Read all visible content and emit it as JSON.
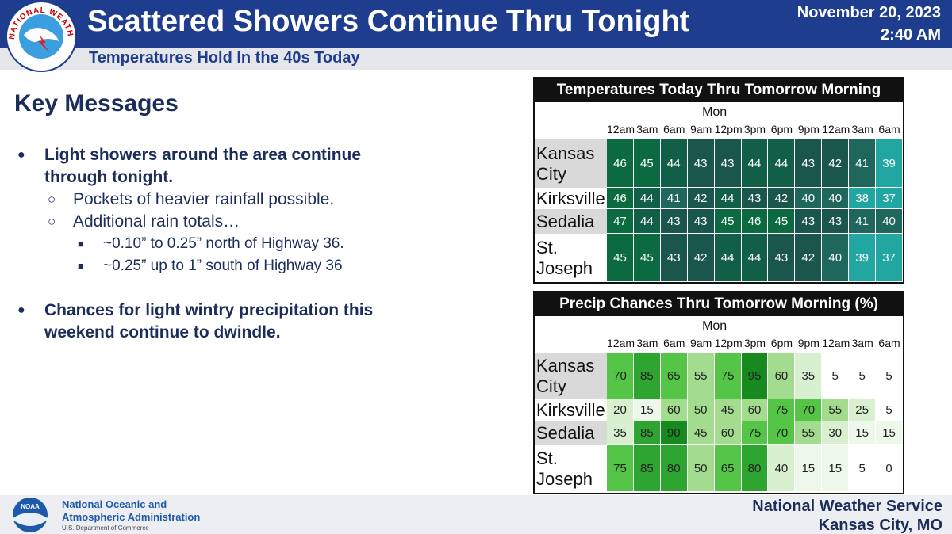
{
  "header": {
    "title": "Scattered Showers Continue Thru Tonight",
    "subtitle": "Temperatures Hold In the 40s Today",
    "date": "November 20, 2023",
    "time": "2:40 AM",
    "logo_text": "NATIONAL WEATHER SERVICE"
  },
  "key_messages": {
    "heading": "Key Messages",
    "bullets": [
      {
        "text": "Light showers around the area continue through tonight.",
        "subs": [
          {
            "text": "Pockets of heavier rainfall possible.",
            "subs": []
          },
          {
            "text": "Additional rain totals…",
            "subs": [
              "~0.10” to 0.25” north of Highway 36.",
              "~0.25” up to 1” south of Highway 36"
            ]
          }
        ]
      },
      {
        "text": "Chances for light wintry precipitation this weekend continue to dwindle.",
        "subs": []
      }
    ]
  },
  "temperature_table": {
    "title": "Temperatures Today Thru Tomorrow Morning",
    "day": "Mon",
    "times": [
      "12am",
      "3am",
      "6am",
      "9am",
      "12pm",
      "3pm",
      "6pm",
      "9pm",
      "12am",
      "3am",
      "6am"
    ],
    "rows": [
      {
        "station": "Kansas City",
        "values": [
          46,
          45,
          44,
          43,
          43,
          44,
          44,
          43,
          42,
          41,
          39
        ]
      },
      {
        "station": "Kirksville",
        "values": [
          46,
          44,
          41,
          42,
          44,
          43,
          42,
          40,
          40,
          38,
          37
        ]
      },
      {
        "station": "Sedalia",
        "values": [
          47,
          44,
          43,
          43,
          45,
          46,
          45,
          43,
          43,
          41,
          40
        ]
      },
      {
        "station": "St. Joseph",
        "values": [
          45,
          45,
          43,
          42,
          44,
          44,
          43,
          42,
          40,
          39,
          37
        ]
      }
    ]
  },
  "precip_table": {
    "title": "Precip Chances Thru Tomorrow Morning (%)",
    "day": "Mon",
    "times": [
      "12am",
      "3am",
      "6am",
      "9am",
      "12pm",
      "3pm",
      "6pm",
      "9pm",
      "12am",
      "3am",
      "6am"
    ],
    "rows": [
      {
        "station": "Kansas City",
        "values": [
          70,
          85,
          65,
          55,
          75,
          95,
          60,
          35,
          5,
          5,
          5
        ]
      },
      {
        "station": "Kirksville",
        "values": [
          20,
          15,
          60,
          50,
          45,
          60,
          75,
          70,
          55,
          25,
          5
        ]
      },
      {
        "station": "Sedalia",
        "values": [
          35,
          85,
          90,
          45,
          60,
          75,
          70,
          55,
          30,
          15,
          15
        ]
      },
      {
        "station": "St. Joseph",
        "values": [
          75,
          85,
          80,
          50,
          65,
          80,
          40,
          15,
          15,
          5,
          0
        ]
      }
    ]
  },
  "footer": {
    "noaa_logo": "NOAA",
    "noaa_line1": "National Oceanic and",
    "noaa_line2": "Atmospheric Administration",
    "department": "U.S. Department of Commerce",
    "nws": "National Weather Service",
    "office": "Kansas City, MO"
  }
}
